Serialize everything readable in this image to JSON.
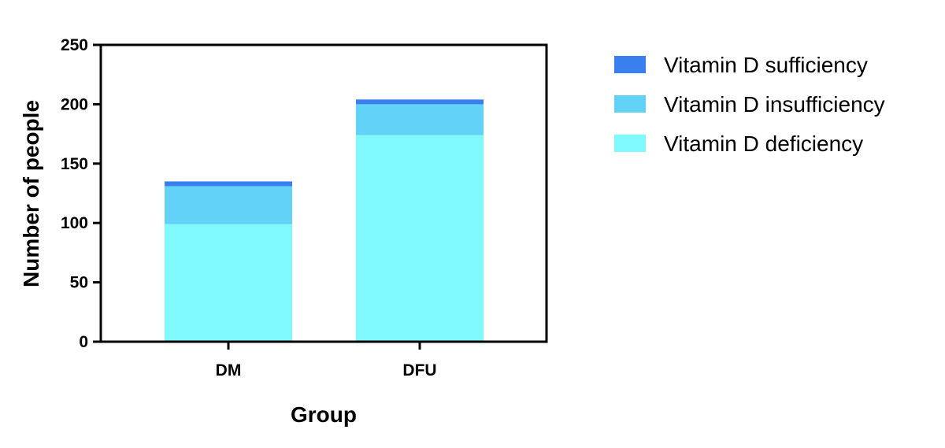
{
  "chart_data": {
    "type": "bar",
    "stacked": true,
    "title": "",
    "xlabel": "Group",
    "ylabel": "Number of people",
    "categories": [
      "DM",
      "DFU"
    ],
    "ylim": [
      0,
      250
    ],
    "yticks": [
      "0",
      "50",
      "100",
      "150",
      "200",
      "250"
    ],
    "grid": false,
    "legend_position": "right",
    "series": [
      {
        "name": "Vitamin D deficiency",
        "values": [
          99,
          174
        ],
        "color": "#80f9fc"
      },
      {
        "name": "Vitamin D insufficiency",
        "values": [
          32,
          26
        ],
        "color": "#62d3f6"
      },
      {
        "name": "Vitamin D sufficiency",
        "values": [
          4,
          4
        ],
        "color": "#3a7fef"
      }
    ],
    "legend_order": [
      "Vitamin D sufficiency",
      "Vitamin D insufficiency",
      "Vitamin D deficiency"
    ]
  }
}
